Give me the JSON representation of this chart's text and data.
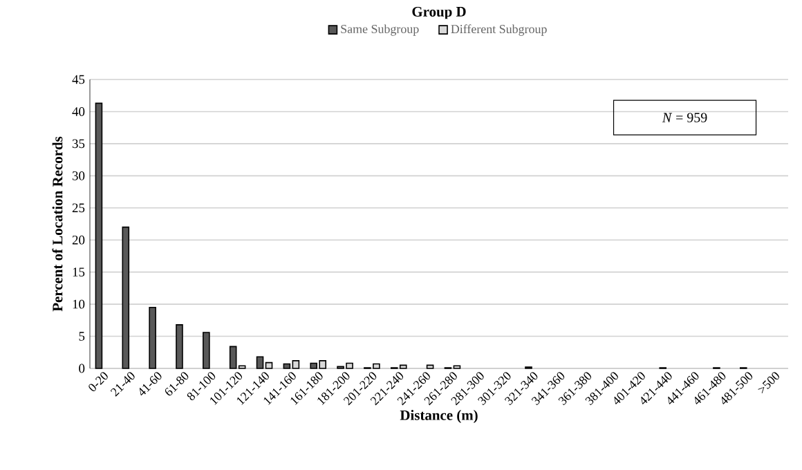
{
  "chart_data": {
    "type": "bar",
    "title": "Group D",
    "xlabel": "Distance (m)",
    "ylabel": "Percent of Location Records",
    "categories": [
      "0-20",
      "21-40",
      "41-60",
      "61-80",
      "81-100",
      "101-120",
      "121-140",
      "141-160",
      "161-180",
      "181-200",
      "201-220",
      "221-240",
      "241-260",
      "261-280",
      "281-300",
      "301-320",
      "321-340",
      "341-360",
      "361-380",
      "381-400",
      "401-420",
      "421-440",
      "441-460",
      "461-480",
      "481-500",
      ">500"
    ],
    "series": [
      {
        "name": "Same Subgroup",
        "color": "#595959",
        "values": [
          41.3,
          22.0,
          9.5,
          6.8,
          5.6,
          3.4,
          1.8,
          0.7,
          0.8,
          0.3,
          0.1,
          0.1,
          0,
          0.1,
          0,
          0,
          0.2,
          0,
          0,
          0,
          0,
          0.1,
          0,
          0.1,
          0.1,
          0
        ]
      },
      {
        "name": "Different Subgroup",
        "color": "#d9d9d9",
        "values": [
          0,
          0,
          0,
          0,
          0,
          0.4,
          0.9,
          1.2,
          1.2,
          0.8,
          0.7,
          0.5,
          0.5,
          0.4,
          0,
          0,
          0,
          0,
          0,
          0,
          0,
          0,
          0,
          0,
          0,
          0
        ]
      }
    ],
    "ylim": [
      0,
      45
    ],
    "yticks": [
      0,
      5,
      10,
      15,
      20,
      25,
      30,
      35,
      40,
      45
    ],
    "grid": "y",
    "legend": "top",
    "annotations": [
      "*N* = 959"
    ]
  }
}
